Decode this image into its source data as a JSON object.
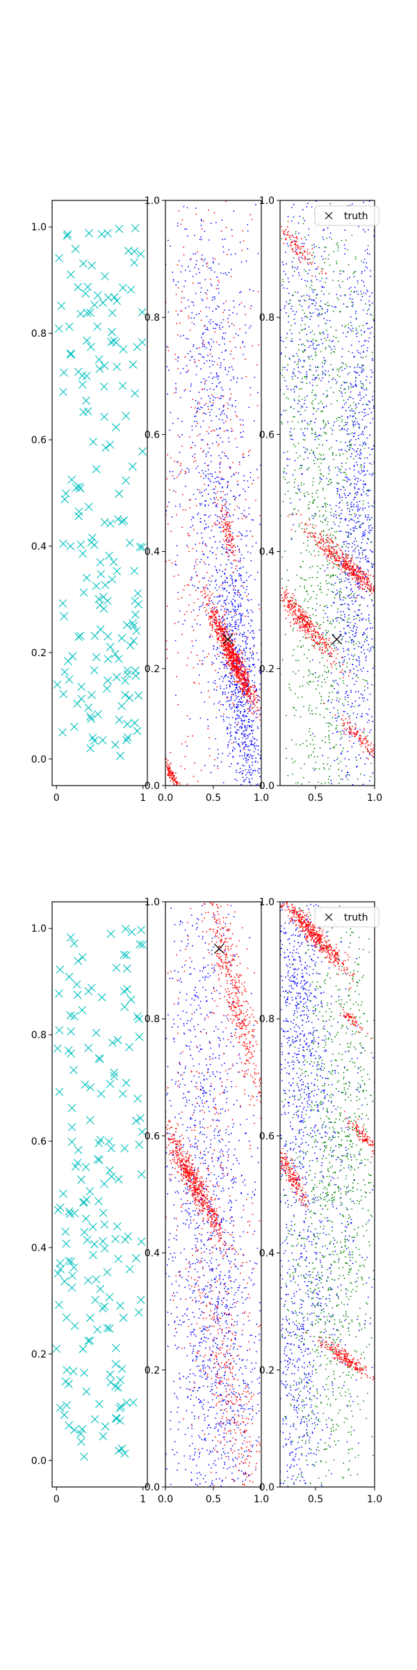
{
  "figure": {
    "background": "#ffffff"
  },
  "colors": {
    "cyan": "#00bfbf",
    "red": "#ff0000",
    "blue": "#0000ff",
    "green": "#008000",
    "black": "#000000"
  },
  "chart_data": [
    {
      "type": "scatter",
      "row": 1,
      "col": 1,
      "title": "",
      "xlim": [
        -0.05,
        1.05
      ],
      "ylim": [
        -0.05,
        1.05
      ],
      "xticks": [
        0,
        1
      ],
      "yticks": [
        0.0,
        0.2,
        0.4,
        0.6,
        0.8,
        1.0
      ],
      "xtick_labels": [
        "0",
        "1"
      ],
      "ytick_labels": [
        "0.0",
        "0.2",
        "0.4",
        "0.6",
        "0.8",
        "1.0"
      ],
      "series": [
        {
          "name": "samples",
          "marker": "x",
          "color": "#00bfbf",
          "count": 180,
          "distribution": "uniform"
        }
      ]
    },
    {
      "type": "scatter",
      "row": 1,
      "col": 2,
      "title": "",
      "xlim": [
        0.0,
        1.0
      ],
      "ylim": [
        0.0,
        1.0
      ],
      "xticks": [
        0.0,
        0.5,
        1.0
      ],
      "yticks": [
        0.0,
        0.2,
        0.4,
        0.6,
        0.8,
        1.0
      ],
      "xtick_labels": [
        "0.0",
        "0.5",
        "1.0"
      ],
      "ytick_labels": [
        "0.0",
        "0.2",
        "0.4",
        "0.6",
        "0.8",
        "1.0"
      ],
      "series": [
        {
          "name": "blue",
          "color": "#0000ff",
          "clusters": [
            {
              "cx": 0.8,
              "cy": 0.15,
              "count": 900,
              "sx": 0.12,
              "sy": 0.12,
              "corr": -0.5
            },
            {
              "cx": 0.55,
              "cy": 0.45,
              "count": 700,
              "sx": 0.22,
              "sy": 0.25,
              "corr": -0.3
            },
            {
              "cx": 0.5,
              "cy": 0.8,
              "count": 300,
              "sx": 0.25,
              "sy": 0.15,
              "corr": 0.0
            }
          ]
        },
        {
          "name": "red",
          "color": "#ff0000",
          "clusters": [
            {
              "cx": 0.7,
              "cy": 0.22,
              "count": 900,
              "sx": 0.13,
              "sy": 0.045,
              "corr": -0.95
            },
            {
              "cx": 0.06,
              "cy": 0.02,
              "count": 120,
              "sx": 0.05,
              "sy": 0.015,
              "corr": -0.9
            },
            {
              "cx": 0.65,
              "cy": 0.43,
              "count": 120,
              "sx": 0.05,
              "sy": 0.03,
              "corr": -0.8
            },
            {
              "cx": 0.4,
              "cy": 0.55,
              "count": 500,
              "sx": 0.35,
              "sy": 0.35,
              "corr": 0.0
            }
          ]
        }
      ],
      "truth": {
        "x": 0.65,
        "y": 0.25
      }
    },
    {
      "type": "scatter",
      "row": 1,
      "col": 3,
      "title": "",
      "xlim": [
        0.2,
        1.0
      ],
      "ylim": [
        0.0,
        1.0
      ],
      "xticks": [
        0.5,
        1.0
      ],
      "yticks": [
        0.0,
        0.2,
        0.4,
        0.6,
        0.8,
        1.0
      ],
      "xtick_labels": [
        "0.5",
        "1.0"
      ],
      "ytick_labels": [
        "0.0",
        "0.2",
        "0.4",
        "0.6",
        "0.8",
        "1.0"
      ],
      "series": [
        {
          "name": "blue",
          "color": "#0000ff",
          "clusters": [
            {
              "cx": 0.85,
              "cy": 0.45,
              "count": 1200,
              "sx": 0.12,
              "sy": 0.28,
              "corr": 0.3
            },
            {
              "cx": 0.4,
              "cy": 0.78,
              "count": 400,
              "sx": 0.15,
              "sy": 0.15,
              "corr": 0.0
            }
          ]
        },
        {
          "name": "green",
          "color": "#008000",
          "clusters": [
            {
              "cx": 0.55,
              "cy": 0.3,
              "count": 900,
              "sx": 0.22,
              "sy": 0.28,
              "corr": -0.2
            },
            {
              "cx": 0.55,
              "cy": 0.75,
              "count": 400,
              "sx": 0.22,
              "sy": 0.2,
              "corr": 0.0
            }
          ]
        },
        {
          "name": "red",
          "color": "#ff0000",
          "clusters": [
            {
              "cx": 0.4,
              "cy": 0.28,
              "count": 400,
              "sx": 0.14,
              "sy": 0.035,
              "corr": -0.95
            },
            {
              "cx": 0.75,
              "cy": 0.38,
              "count": 450,
              "sx": 0.16,
              "sy": 0.03,
              "corr": -0.95
            },
            {
              "cx": 0.35,
              "cy": 0.92,
              "count": 100,
              "sx": 0.09,
              "sy": 0.02,
              "corr": -0.9
            },
            {
              "cx": 0.88,
              "cy": 0.08,
              "count": 120,
              "sx": 0.11,
              "sy": 0.02,
              "corr": -0.9
            }
          ]
        }
      ],
      "truth": {
        "x": 0.68,
        "y": 0.25
      },
      "legend": {
        "label": "truth",
        "marker": "x",
        "placement": "top-right"
      }
    },
    {
      "type": "scatter",
      "row": 2,
      "col": 1,
      "title": "",
      "xlim": [
        -0.05,
        1.05
      ],
      "ylim": [
        -0.05,
        1.05
      ],
      "xticks": [
        0,
        1
      ],
      "yticks": [
        0.0,
        0.2,
        0.4,
        0.6,
        0.8,
        1.0
      ],
      "xtick_labels": [
        "0",
        "1"
      ],
      "ytick_labels": [
        "0.0",
        "0.2",
        "0.4",
        "0.6",
        "0.8",
        "1.0"
      ],
      "series": [
        {
          "name": "samples",
          "marker": "x",
          "color": "#00bfbf",
          "count": 180,
          "distribution": "uniform"
        }
      ]
    },
    {
      "type": "scatter",
      "row": 2,
      "col": 2,
      "title": "",
      "xlim": [
        0.0,
        1.0
      ],
      "ylim": [
        0.0,
        1.0
      ],
      "xticks": [
        0.0,
        0.5,
        1.0
      ],
      "yticks": [
        0.0,
        0.2,
        0.4,
        0.6,
        0.8,
        1.0
      ],
      "xtick_labels": [
        "0.0",
        "0.5",
        "1.0"
      ],
      "ytick_labels": [
        "0.0",
        "0.2",
        "0.4",
        "0.6",
        "0.8",
        "1.0"
      ],
      "series": [
        {
          "name": "blue",
          "color": "#0000ff",
          "clusters": [
            {
              "cx": 0.45,
              "cy": 0.5,
              "count": 1300,
              "sx": 0.26,
              "sy": 0.28,
              "corr": -0.3
            },
            {
              "cx": 0.5,
              "cy": 0.15,
              "count": 400,
              "sx": 0.25,
              "sy": 0.12,
              "corr": 0.0
            }
          ]
        },
        {
          "name": "red",
          "color": "#ff0000",
          "clusters": [
            {
              "cx": 0.3,
              "cy": 0.52,
              "count": 650,
              "sx": 0.16,
              "sy": 0.05,
              "corr": -0.95
            },
            {
              "cx": 0.72,
              "cy": 0.85,
              "count": 500,
              "sx": 0.15,
              "sy": 0.1,
              "corr": -0.9
            },
            {
              "cx": 0.7,
              "cy": 0.15,
              "count": 300,
              "sx": 0.2,
              "sy": 0.12,
              "corr": -0.8
            },
            {
              "cx": 0.5,
              "cy": 0.5,
              "count": 400,
              "sx": 0.3,
              "sy": 0.35,
              "corr": 0.0
            }
          ]
        }
      ],
      "truth": {
        "x": 0.56,
        "y": 0.92
      }
    },
    {
      "type": "scatter",
      "row": 2,
      "col": 3,
      "title": "",
      "xlim": [
        0.2,
        1.0
      ],
      "ylim": [
        0.0,
        1.0
      ],
      "xticks": [
        0.5,
        1.0
      ],
      "yticks": [
        0.0,
        0.2,
        0.4,
        0.6,
        0.8,
        1.0
      ],
      "xtick_labels": [
        "0.5",
        "1.0"
      ],
      "ytick_labels": [
        "0.0",
        "0.2",
        "0.4",
        "0.6",
        "0.8",
        "1.0"
      ],
      "series": [
        {
          "name": "blue",
          "color": "#0000ff",
          "clusters": [
            {
              "cx": 0.35,
              "cy": 0.8,
              "count": 700,
              "sx": 0.12,
              "sy": 0.15,
              "corr": 0.0
            },
            {
              "cx": 0.35,
              "cy": 0.2,
              "count": 450,
              "sx": 0.12,
              "sy": 0.15,
              "corr": 0.0
            },
            {
              "cx": 0.55,
              "cy": 0.5,
              "count": 500,
              "sx": 0.22,
              "sy": 0.22,
              "corr": 0.0
            }
          ]
        },
        {
          "name": "green",
          "color": "#008000",
          "clusters": [
            {
              "cx": 0.7,
              "cy": 0.65,
              "count": 700,
              "sx": 0.2,
              "sy": 0.2,
              "corr": 0.0
            },
            {
              "cx": 0.6,
              "cy": 0.3,
              "count": 600,
              "sx": 0.22,
              "sy": 0.2,
              "corr": 0.0
            }
          ]
        },
        {
          "name": "red",
          "color": "#ff0000",
          "clusters": [
            {
              "cx": 0.5,
              "cy": 0.94,
              "count": 500,
              "sx": 0.14,
              "sy": 0.03,
              "corr": -0.95
            },
            {
              "cx": 0.3,
              "cy": 0.53,
              "count": 200,
              "sx": 0.07,
              "sy": 0.025,
              "corr": -0.9
            },
            {
              "cx": 0.75,
              "cy": 0.22,
              "count": 220,
              "sx": 0.1,
              "sy": 0.015,
              "corr": -0.9
            },
            {
              "cx": 0.9,
              "cy": 0.6,
              "count": 100,
              "sx": 0.06,
              "sy": 0.015,
              "corr": -0.9
            },
            {
              "cx": 0.8,
              "cy": 0.8,
              "count": 60,
              "sx": 0.05,
              "sy": 0.01,
              "corr": -0.9
            }
          ]
        }
      ],
      "legend": {
        "label": "truth",
        "marker": "x",
        "placement": "top-right"
      }
    }
  ]
}
